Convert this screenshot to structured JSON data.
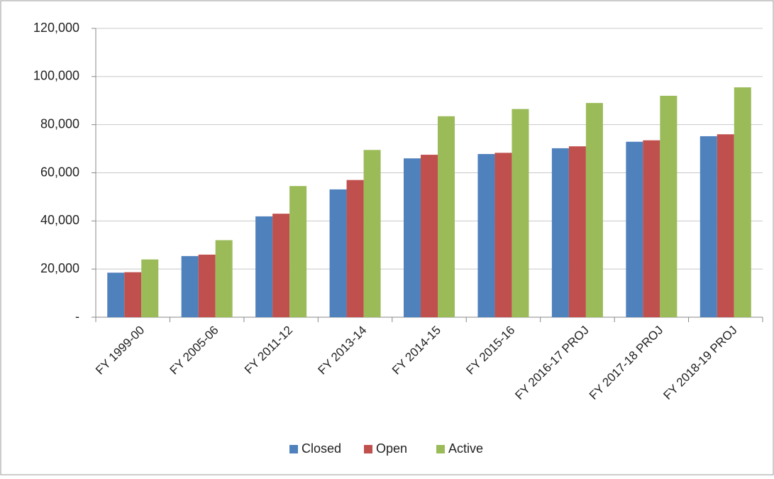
{
  "chart_data": {
    "type": "bar",
    "categories": [
      "FY 1999-00",
      "FY 2005-06",
      "FY 2011-12",
      "FY 2013-14",
      "FY 2014-15",
      "FY 2015-16",
      "FY 2016-17 PROJ",
      "FY 2017-18 PROJ",
      "FY 2018-19 PROJ"
    ],
    "series": [
      {
        "name": "Closed",
        "color": "#4f81bd",
        "values": [
          18500,
          25400,
          41900,
          53100,
          66000,
          67800,
          70200,
          72900,
          75200
        ]
      },
      {
        "name": "Open",
        "color": "#c0504d",
        "values": [
          18700,
          26000,
          43000,
          57000,
          67500,
          68300,
          71000,
          73500,
          76000
        ]
      },
      {
        "name": "Active",
        "color": "#9bbb59",
        "values": [
          24000,
          32000,
          54500,
          69500,
          83500,
          86500,
          89000,
          92000,
          95500
        ]
      }
    ],
    "ylim": [
      0,
      120000
    ],
    "yticks": [
      {
        "value": 0,
        "label": "-"
      },
      {
        "value": 20000,
        "label": "20,000"
      },
      {
        "value": 40000,
        "label": "40,000"
      },
      {
        "value": 60000,
        "label": "60,000"
      },
      {
        "value": 80000,
        "label": "80,000"
      },
      {
        "value": 100000,
        "label": "100,000"
      },
      {
        "value": 120000,
        "label": "120,000"
      }
    ],
    "grid": true,
    "legend": "bottom"
  }
}
